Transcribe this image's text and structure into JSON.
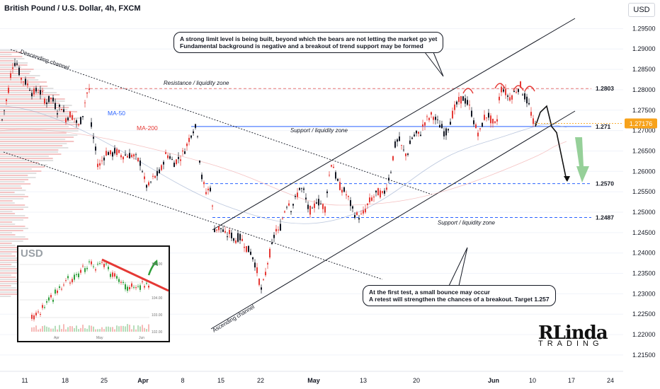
{
  "header": {
    "title": "British Pound / U.S. Dollar, 4h, FXCM"
  },
  "currency_button": "USD",
  "annotations": {
    "top_line1": "A strong limit level is being built, beyond which the bears are not letting the market go yet",
    "top_line2": "Fundamental background is negative and a breakout of trend support may be formed",
    "bottom_line1": "At the first test, a small bounce may occur",
    "bottom_line2": "A retest will strengthen the chances of a breakout. Target 1.257"
  },
  "logo": {
    "main": "RLinda",
    "sub": "TRADING"
  },
  "colors": {
    "up": "#131722",
    "down": "#e53935",
    "price_tag": "#f7a21b",
    "ma50": "#2962ff",
    "ma200": "#e53935",
    "support": "#2962ff",
    "resistance": "#e57373"
  },
  "chart_data": {
    "type": "candlestick",
    "title": "British Pound / U.S. Dollar, 4h, FXCM",
    "ylim": [
      1.211,
      1.302
    ],
    "y_ticks": [
      "1.29500",
      "1.29000",
      "1.28500",
      "1.28000",
      "1.27500",
      "1.27000",
      "1.26500",
      "1.26000",
      "1.25500",
      "1.25000",
      "1.24500",
      "1.24000",
      "1.23500",
      "1.23000",
      "1.22500",
      "1.22000",
      "1.21500"
    ],
    "x_ticks": [
      "11",
      "18",
      "25",
      "Apr",
      "8",
      "15",
      "22",
      "May",
      "13",
      "20",
      "Jun",
      "10",
      "17",
      "24"
    ],
    "current_price": "1.27176",
    "levels": [
      {
        "value": 1.2803,
        "label": "1.2803",
        "zone": "Resistance / liquidity zone"
      },
      {
        "value": 1.271,
        "label": "1.271",
        "zone": "Support / liquidity zone"
      },
      {
        "value": 1.257,
        "label": "1.2570",
        "zone": ""
      },
      {
        "value": 1.2487,
        "label": "1.2487",
        "zone": "Support / liquidity zone"
      }
    ],
    "ma_labels": {
      "ma50": "MA-50",
      "ma200": "MA-200"
    },
    "channel_labels": {
      "descending": "Descending channel",
      "ascending": "Ascending channel"
    },
    "path": [
      [
        0,
        1.271
      ],
      [
        5,
        1.275
      ],
      [
        10,
        1.279
      ],
      [
        16,
        1.286
      ],
      [
        22,
        1.287
      ],
      [
        28,
        1.283
      ],
      [
        34,
        1.282
      ],
      [
        40,
        1.281
      ],
      [
        45,
        1.279
      ],
      [
        52,
        1.28
      ],
      [
        58,
        1.279
      ],
      [
        64,
        1.277
      ],
      [
        72,
        1.278
      ],
      [
        80,
        1.275
      ],
      [
        86,
        1.276
      ],
      [
        92,
        1.273
      ],
      [
        98,
        1.274
      ],
      [
        104,
        1.273
      ],
      [
        110,
        1.271
      ],
      [
        116,
        1.274
      ],
      [
        121,
        1.279
      ],
      [
        125,
        1.28
      ],
      [
        128,
        1.271
      ],
      [
        133,
        1.266
      ],
      [
        138,
        1.261
      ],
      [
        144,
        1.263
      ],
      [
        150,
        1.265
      ],
      [
        156,
        1.264
      ],
      [
        162,
        1.265
      ],
      [
        170,
        1.264
      ],
      [
        178,
        1.264
      ],
      [
        186,
        1.264
      ],
      [
        192,
        1.263
      ],
      [
        198,
        1.262
      ],
      [
        204,
        1.257
      ],
      [
        208,
        1.256
      ],
      [
        214,
        1.258
      ],
      [
        220,
        1.259
      ],
      [
        226,
        1.26
      ],
      [
        232,
        1.264
      ],
      [
        238,
        1.264
      ],
      [
        244,
        1.262
      ],
      [
        250,
        1.263
      ],
      [
        256,
        1.264
      ],
      [
        262,
        1.266
      ],
      [
        268,
        1.269
      ],
      [
        274,
        1.271
      ],
      [
        279,
        1.269
      ],
      [
        282,
        1.26
      ],
      [
        286,
        1.257
      ],
      [
        290,
        1.255
      ],
      [
        296,
        1.256
      ],
      [
        302,
        1.246
      ],
      [
        306,
        1.246
      ],
      [
        312,
        1.246
      ],
      [
        318,
        1.244
      ],
      [
        324,
        1.245
      ],
      [
        330,
        1.243
      ],
      [
        336,
        1.244
      ],
      [
        342,
        1.243
      ],
      [
        348,
        1.241
      ],
      [
        354,
        1.24
      ],
      [
        360,
        1.237
      ],
      [
        364,
        1.234
      ],
      [
        368,
        1.231
      ],
      [
        372,
        1.233
      ],
      [
        376,
        1.237
      ],
      [
        380,
        1.24
      ],
      [
        384,
        1.242
      ],
      [
        388,
        1.246
      ],
      [
        392,
        1.245
      ],
      [
        396,
        1.247
      ],
      [
        400,
        1.25
      ],
      [
        406,
        1.253
      ],
      [
        410,
        1.251
      ],
      [
        416,
        1.253
      ],
      [
        422,
        1.256
      ],
      [
        428,
        1.255
      ],
      [
        434,
        1.251
      ],
      [
        440,
        1.25
      ],
      [
        446,
        1.253
      ],
      [
        452,
        1.252
      ],
      [
        458,
        1.251
      ],
      [
        462,
        1.257
      ],
      [
        468,
        1.263
      ],
      [
        474,
        1.258
      ],
      [
        480,
        1.256
      ],
      [
        486,
        1.255
      ],
      [
        492,
        1.253
      ],
      [
        498,
        1.25
      ],
      [
        504,
        1.249
      ],
      [
        510,
        1.249
      ],
      [
        516,
        1.251
      ],
      [
        522,
        1.253
      ],
      [
        528,
        1.254
      ],
      [
        534,
        1.255
      ],
      [
        540,
        1.254
      ],
      [
        546,
        1.257
      ],
      [
        552,
        1.261
      ],
      [
        556,
        1.266
      ],
      [
        562,
        1.268
      ],
      [
        568,
        1.265
      ],
      [
        574,
        1.264
      ],
      [
        580,
        1.268
      ],
      [
        586,
        1.269
      ],
      [
        592,
        1.269
      ],
      [
        598,
        1.272
      ],
      [
        604,
        1.273
      ],
      [
        610,
        1.274
      ],
      [
        616,
        1.272
      ],
      [
        622,
        1.271
      ],
      [
        628,
        1.269
      ],
      [
        634,
        1.272
      ],
      [
        640,
        1.275
      ],
      [
        646,
        1.277
      ],
      [
        652,
        1.278
      ],
      [
        658,
        1.277
      ],
      [
        664,
        1.275
      ],
      [
        670,
        1.271
      ],
      [
        676,
        1.269
      ],
      [
        682,
        1.273
      ],
      [
        688,
        1.274
      ],
      [
        694,
        1.272
      ],
      [
        700,
        1.271
      ],
      [
        704,
        1.278
      ],
      [
        708,
        1.281
      ],
      [
        714,
        1.279
      ],
      [
        718,
        1.278
      ],
      [
        724,
        1.279
      ],
      [
        728,
        1.28
      ],
      [
        734,
        1.281
      ],
      [
        738,
        1.279
      ],
      [
        744,
        1.277
      ],
      [
        748,
        1.275
      ],
      [
        752,
        1.272
      ],
      [
        756,
        1.271
      ]
    ],
    "projection": [
      [
        756,
        1.271
      ],
      [
        763,
        1.2745
      ],
      [
        772,
        1.276
      ],
      [
        779,
        1.271
      ],
      [
        786,
        1.2695
      ],
      [
        800,
        1.2578
      ]
    ]
  }
}
